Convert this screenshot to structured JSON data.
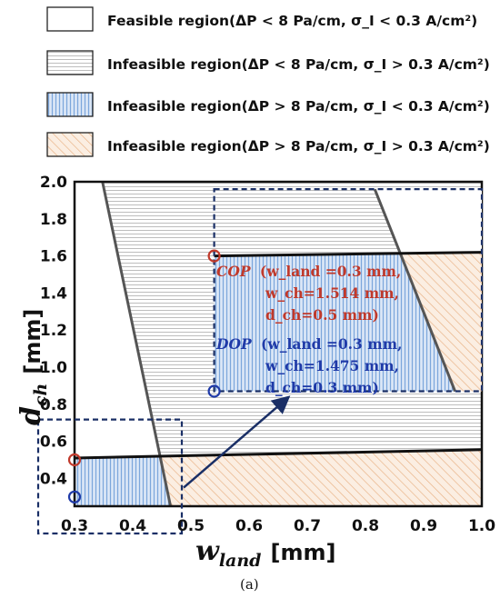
{
  "chart_data": {
    "type": "area",
    "title": "",
    "xlabel": "w_land [mm]",
    "ylabel": "d_ch [mm]",
    "xlim": [
      0.3,
      1.0
    ],
    "ylim": [
      0.25,
      2.0
    ],
    "x_ticks": [
      "0.3",
      "0.4",
      "0.5",
      "0.6",
      "0.7",
      "0.8",
      "0.9",
      "1.0"
    ],
    "y_ticks": [
      "0.4",
      "0.6",
      "0.8",
      "1.0",
      "1.2",
      "1.4",
      "1.6",
      "1.8",
      "2.0"
    ],
    "legend": {
      "placement": "top",
      "entries": [
        {
          "label": "Feasible region(ΔP < 8 Pa/cm,  σ_I < 0.3 A/cm²)",
          "fill": "white",
          "color": "#ffffff"
        },
        {
          "label": "Infeasible region(ΔP < 8 Pa/cm,  σ_I > 0.3 A/cm²)",
          "fill": "horizontal-lines",
          "color": "#bdbdbd"
        },
        {
          "label": "Infeasible region(ΔP > 8 Pa/cm,  σ_I < 0.3 A/cm²)",
          "fill": "vertical-lines",
          "color": "#7da7dc"
        },
        {
          "label": "Infeasible region(ΔP > 8 Pa/cm,  σ_I > 0.3 A/cm²)",
          "fill": "diagonal-lines",
          "color": "#e8b083"
        }
      ]
    },
    "boundaries": [
      {
        "name": "current density limit",
        "points": [
          [
            0.348,
            2.0
          ],
          [
            0.465,
            0.25
          ]
        ]
      },
      {
        "name": "pressure drop limit",
        "points": [
          [
            0.3,
            0.51
          ],
          [
            1.0,
            0.555
          ]
        ]
      }
    ],
    "inset": {
      "xlim": [
        0.3,
        0.475
      ],
      "ylim": [
        0.25,
        2.0
      ],
      "xlim_full": [
        0.3,
        0.55
      ],
      "display_x_range": [
        0.54,
        1.0
      ],
      "display_y_range": [
        0.87,
        1.96
      ],
      "pressure_drop_limit_y": 1.6,
      "current_density_limit": [
        [
          0.45,
          2.0
        ],
        [
          0.525,
          0.25
        ]
      ]
    },
    "points": [
      {
        "name": "COP",
        "w_land": 0.3,
        "w_ch": 1.514,
        "d_ch": 0.5,
        "color": "#c0392b"
      },
      {
        "name": "DOP",
        "w_land": 0.3,
        "w_ch": 1.475,
        "d_ch": 0.3,
        "color": "#1f3aa8"
      }
    ],
    "annotations": {
      "cop": {
        "name": "COP",
        "line1": "(w_land =0.3 mm,",
        "line2": "w_ch=1.514 mm,",
        "line3": "d_ch=0.5 mm)",
        "color": "#c0392b"
      },
      "dop": {
        "name": "DOP",
        "line1": "(w_land =0.3 mm,",
        "line2": "w_ch=1.475 mm,",
        "line3": "d_ch=0.3 mm)",
        "color": "#1f3aa8"
      }
    },
    "caption": "(a)"
  }
}
